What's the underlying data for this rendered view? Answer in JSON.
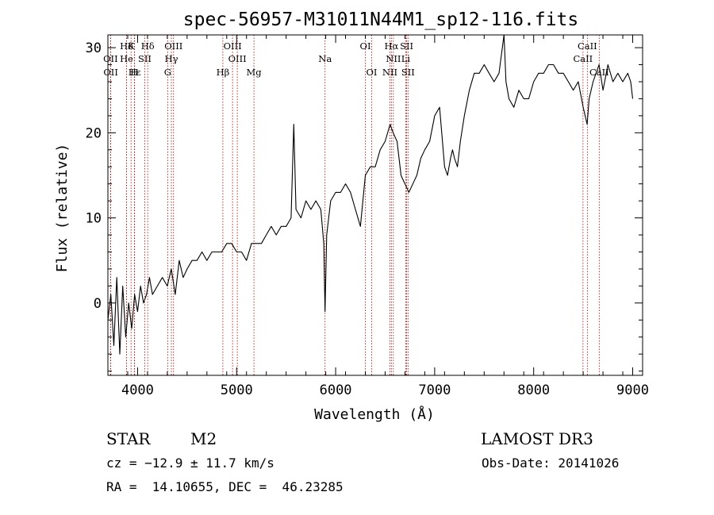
{
  "chart_data": {
    "type": "line",
    "title": "spec-56957-M31011N44M1_sp12-116.fits",
    "xlabel": "Wavelength (Å)",
    "ylabel": "Flux (relative)",
    "xlim": [
      3700,
      9100
    ],
    "ylim": [
      -8.5,
      31.5
    ],
    "xticks": [
      4000,
      5000,
      6000,
      7000,
      8000,
      9000
    ],
    "yticks": [
      0,
      10,
      20,
      30
    ],
    "grid": false,
    "legend": "none",
    "lines": [
      {
        "label": "Hδ",
        "x": 3889,
        "row": 1
      },
      {
        "label": "K",
        "x": 3934,
        "row": 1
      },
      {
        "label": "Hδ",
        "x": 4102,
        "row": 1
      },
      {
        "label": "OIII",
        "x": 4363,
        "row": 1
      },
      {
        "label": "OIII",
        "x": 4959,
        "row": 1
      },
      {
        "label": "OI",
        "x": 6300,
        "row": 1
      },
      {
        "label": "Hα",
        "x": 6563,
        "row": 1
      },
      {
        "label": "SII",
        "x": 6717,
        "row": 1
      },
      {
        "label": "CaII",
        "x": 8542,
        "row": 1
      },
      {
        "label": "OII",
        "x": 3727,
        "row": 2
      },
      {
        "label": "He",
        "x": 3889,
        "row": 2
      },
      {
        "label": "SII",
        "x": 4072,
        "row": 2
      },
      {
        "label": "Hγ",
        "x": 4341,
        "row": 2
      },
      {
        "label": "OIII",
        "x": 5007,
        "row": 2
      },
      {
        "label": "Na",
        "x": 5893,
        "row": 2
      },
      {
        "label": "NII",
        "x": 6583,
        "row": 2
      },
      {
        "label": "Li",
        "x": 6708,
        "row": 2
      },
      {
        "label": "CaII",
        "x": 8498,
        "row": 2
      },
      {
        "label": "OII",
        "x": 3729,
        "row": 3
      },
      {
        "label": "Hε",
        "x": 3970,
        "row": 3
      },
      {
        "label": "H",
        "x": 3968,
        "row": 3
      },
      {
        "label": "G",
        "x": 4304,
        "row": 3
      },
      {
        "label": "Hβ",
        "x": 4861,
        "row": 3
      },
      {
        "label": "Mg",
        "x": 5175,
        "row": 3
      },
      {
        "label": "OI",
        "x": 6364,
        "row": 3
      },
      {
        "label": "NII",
        "x": 6548,
        "row": 3
      },
      {
        "label": "SII",
        "x": 6731,
        "row": 3
      },
      {
        "label": "CaII",
        "x": 8662,
        "row": 3
      }
    ],
    "series": [
      {
        "x": [
          3700,
          3730,
          3760,
          3790,
          3820,
          3850,
          3880,
          3910,
          3940,
          3970,
          4000,
          4030,
          4060,
          4090,
          4120,
          4150,
          4200,
          4250,
          4300,
          4340,
          4380,
          4420,
          4460,
          4500,
          4550,
          4600,
          4650,
          4700,
          4750,
          4800,
          4850,
          4900,
          4950,
          5000,
          5050,
          5100,
          5150,
          5200,
          5250,
          5300,
          5350,
          5400,
          5450,
          5500,
          5550,
          5577,
          5600,
          5650,
          5700,
          5750,
          5800,
          5850,
          5880,
          5893,
          5910,
          5950,
          6000,
          6050,
          6100,
          6150,
          6200,
          6250,
          6300,
          6350,
          6400,
          6450,
          6500,
          6550,
          6580,
          6620,
          6660,
          6700,
          6740,
          6780,
          6820,
          6860,
          6900,
          6950,
          7000,
          7050,
          7100,
          7130,
          7160,
          7180,
          7200,
          7230,
          7260,
          7300,
          7350,
          7400,
          7450,
          7500,
          7550,
          7600,
          7650,
          7700,
          7720,
          7750,
          7800,
          7850,
          7900,
          7950,
          8000,
          8050,
          8100,
          8150,
          8200,
          8250,
          8300,
          8350,
          8400,
          8450,
          8500,
          8540,
          8560,
          8600,
          8630,
          8660,
          8700,
          8750,
          8800,
          8850,
          8900,
          8950,
          8980,
          9000
        ],
        "values": [
          -2,
          1,
          -5,
          3,
          -6,
          2,
          -4,
          0,
          -3,
          1,
          -1,
          2,
          0,
          1,
          3,
          1,
          2,
          3,
          2,
          4,
          1,
          5,
          3,
          4,
          5,
          5,
          6,
          5,
          6,
          6,
          6,
          7,
          7,
          6,
          6,
          5,
          7,
          7,
          7,
          8,
          9,
          8,
          9,
          9,
          10,
          21,
          11,
          10,
          12,
          11,
          12,
          11,
          7,
          -1,
          8,
          12,
          13,
          13,
          14,
          13,
          11,
          9,
          15,
          16,
          16,
          18,
          19,
          21,
          20,
          19,
          15,
          14,
          13,
          14,
          15,
          17,
          18,
          19,
          22,
          23,
          16,
          15,
          17,
          18,
          17,
          16,
          19,
          22,
          25,
          27,
          27,
          28,
          27,
          26,
          27,
          32,
          26,
          24,
          23,
          25,
          24,
          24,
          26,
          27,
          27,
          28,
          28,
          27,
          27,
          26,
          25,
          26,
          23,
          21,
          24,
          26,
          27,
          28,
          25,
          28,
          26,
          27,
          26,
          27,
          26,
          24
        ]
      }
    ],
    "annotations": {
      "object_class": "STAR",
      "subclass": "M2",
      "survey": "LAMOST DR3",
      "redshift": "cz = −12.9 ± 11.7 km/s",
      "obs_date": "Obs-Date: 20141026",
      "coords": "RA =  14.10655, DEC =  46.23285"
    }
  }
}
